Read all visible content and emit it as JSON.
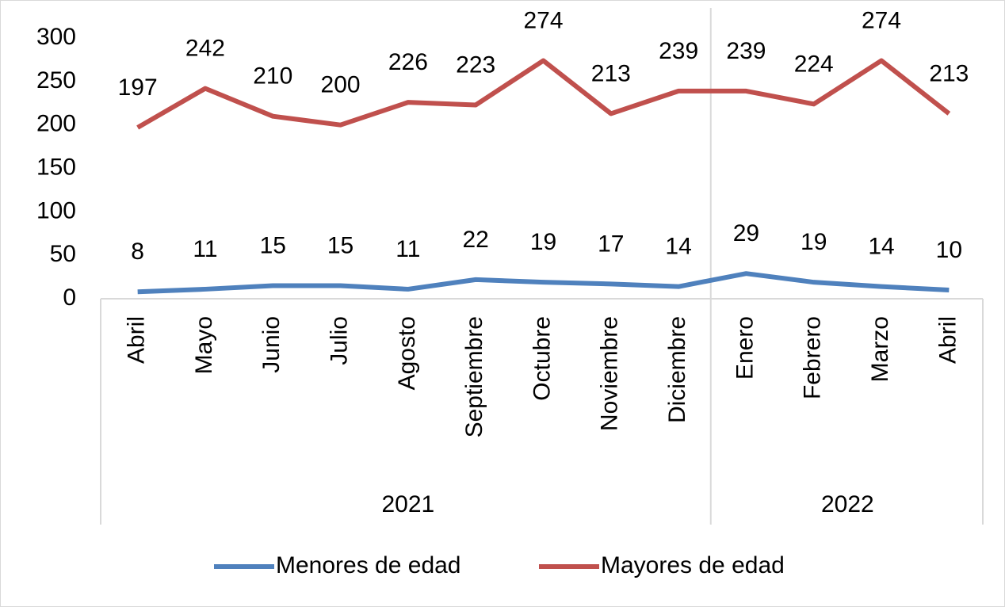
{
  "chart_data": {
    "type": "line",
    "groups": [
      {
        "label": "2021",
        "categories": [
          "Abril",
          "Mayo",
          "Junio",
          "Julio",
          "Agosto",
          "Septiembre",
          "Octubre",
          "Noviembre",
          "Diciembre"
        ]
      },
      {
        "label": "2022",
        "categories": [
          "Enero",
          "Febrero",
          "Marzo",
          "Abril"
        ]
      }
    ],
    "series": [
      {
        "name": "Menores de edad",
        "color": "#4f81bd",
        "values": [
          8,
          11,
          15,
          15,
          11,
          22,
          19,
          17,
          14,
          29,
          19,
          14,
          10
        ]
      },
      {
        "name": "Mayores de edad",
        "color": "#c0504d",
        "values": [
          197,
          242,
          210,
          200,
          226,
          223,
          274,
          213,
          239,
          239,
          224,
          274,
          213
        ]
      }
    ],
    "ylim": [
      0,
      300
    ],
    "yticks": [
      0,
      50,
      100,
      150,
      200,
      250,
      300
    ],
    "legend": "bottom",
    "data_labels": true
  }
}
